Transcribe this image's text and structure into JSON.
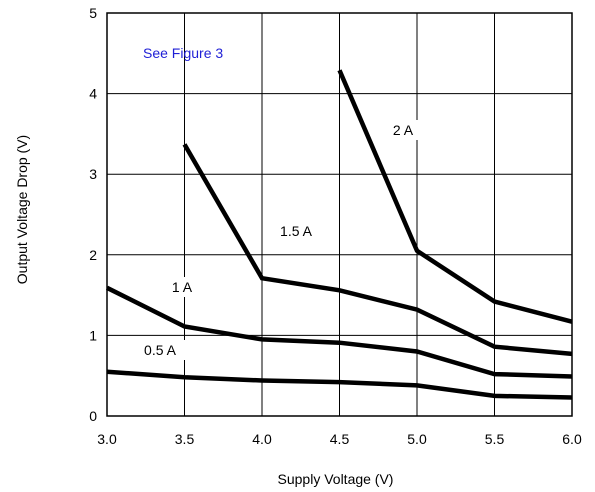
{
  "chart_data": {
    "type": "line",
    "title": "",
    "xlabel": "Supply Voltage (V)",
    "ylabel": "Output Voltage Drop (V)",
    "xlim": [
      3.0,
      6.0
    ],
    "ylim": [
      0,
      5
    ],
    "xticks": [
      3.0,
      3.5,
      4.0,
      4.5,
      5.0,
      5.5,
      6.0
    ],
    "xtick_labels": [
      "3.0",
      "3.5",
      "4.0",
      "4.5",
      "5.0",
      "5.5",
      "6.0"
    ],
    "yticks": [
      0,
      1,
      2,
      3,
      4,
      5
    ],
    "ytick_labels": [
      "0",
      "1",
      "2",
      "3",
      "4",
      "5"
    ],
    "grid": true,
    "legend": "none",
    "annotation": {
      "text": "See Figure 3",
      "color": "#1f1fd6"
    },
    "series": [
      {
        "name": "0.5 A",
        "x": [
          3.0,
          3.5,
          4.0,
          4.5,
          5.0,
          5.5,
          6.0
        ],
        "y": [
          0.55,
          0.48,
          0.44,
          0.42,
          0.38,
          0.25,
          0.23
        ]
      },
      {
        "name": "1 A",
        "x": [
          3.0,
          3.5,
          4.0,
          4.5,
          5.0,
          5.5,
          6.0
        ],
        "y": [
          1.59,
          1.11,
          0.95,
          0.91,
          0.8,
          0.52,
          0.49
        ]
      },
      {
        "name": "1.5 A",
        "x": [
          3.5,
          4.0,
          4.5,
          5.0,
          5.5,
          6.0
        ],
        "y": [
          3.37,
          1.71,
          1.56,
          1.32,
          0.86,
          0.77
        ]
      },
      {
        "name": "2 A",
        "x": [
          4.5,
          5.0,
          5.5,
          6.0
        ],
        "y": [
          4.29,
          2.05,
          1.42,
          1.17
        ]
      }
    ]
  }
}
